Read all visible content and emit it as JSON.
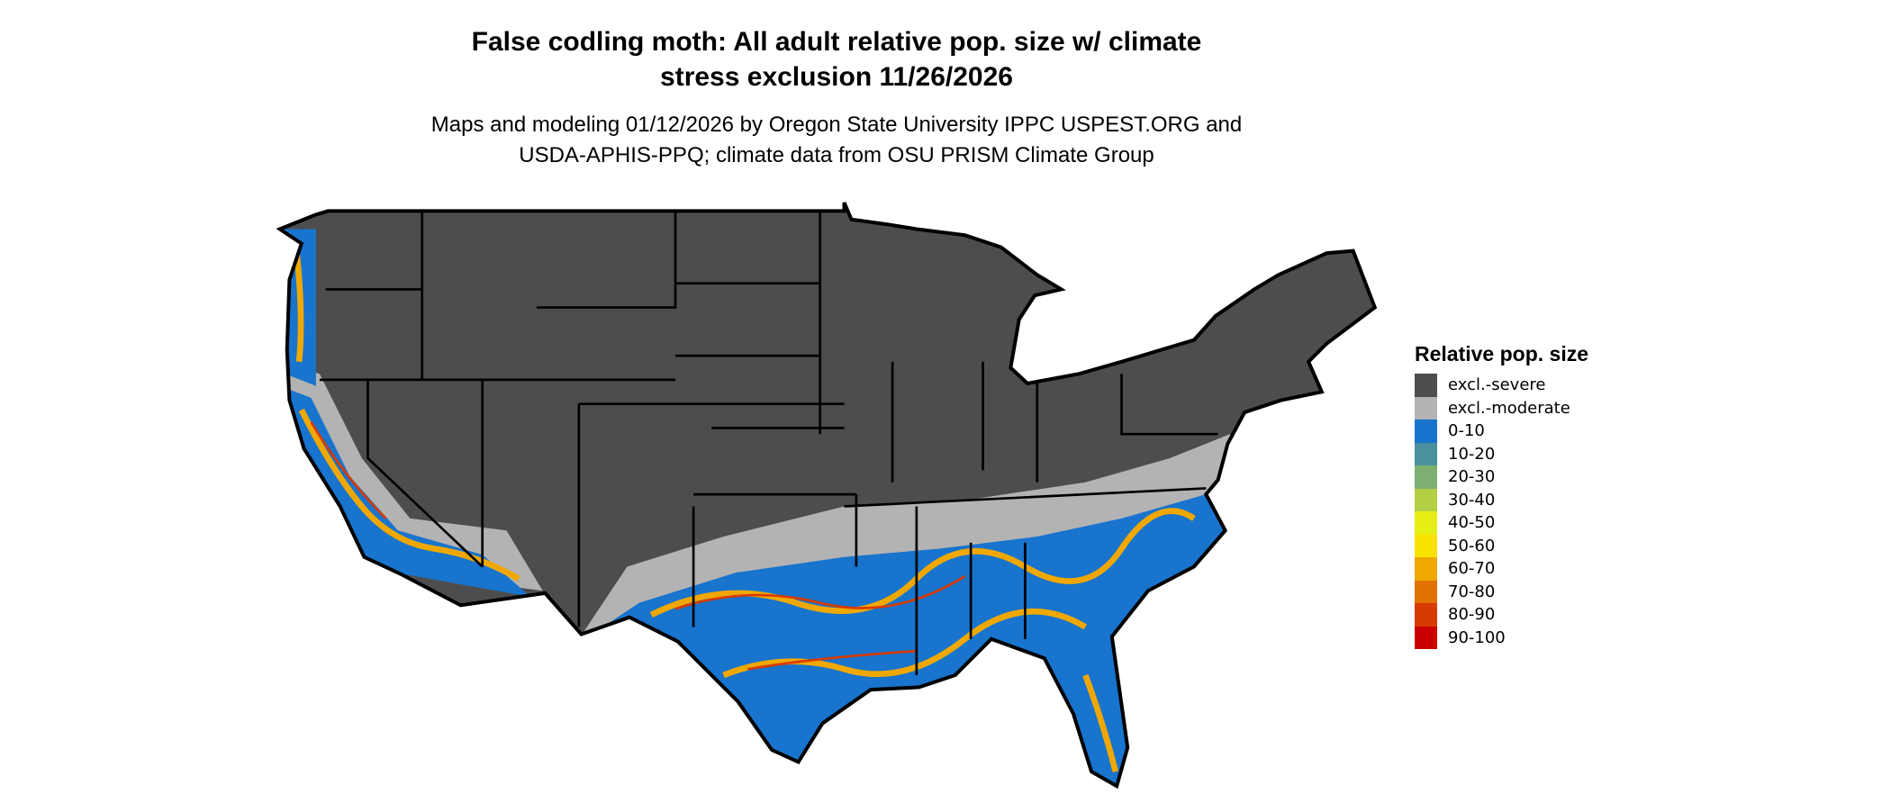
{
  "title": {
    "line1": "False codling moth: All adult relative pop. size w/ climate",
    "line2": "stress exclusion 11/26/2026"
  },
  "subtitle": {
    "line1": "Maps and modeling 01/12/2026 by Oregon State University IPPC USPEST.ORG and",
    "line2": "USDA-APHIS-PPQ; climate data from OSU PRISM Climate Group"
  },
  "legend": {
    "title": "Relative pop. size",
    "items": [
      {
        "label": "excl.-severe",
        "color": "#4d4d4d"
      },
      {
        "label": "excl.-moderate",
        "color": "#b3b3b3"
      },
      {
        "label": "0-10",
        "color": "#1874cd"
      },
      {
        "label": "10-20",
        "color": "#4a919e"
      },
      {
        "label": "20-30",
        "color": "#7db070"
      },
      {
        "label": "30-40",
        "color": "#b3d045"
      },
      {
        "label": "40-50",
        "color": "#e5ef14"
      },
      {
        "label": "50-60",
        "color": "#f9e200"
      },
      {
        "label": "60-70",
        "color": "#f0a800"
      },
      {
        "label": "70-80",
        "color": "#e37100"
      },
      {
        "label": "80-90",
        "color": "#d93a00"
      },
      {
        "label": "90-100",
        "color": "#cc0000"
      }
    ]
  },
  "map": {
    "region": "Contiguous United States",
    "colors": {
      "border": "#000000",
      "severe": "#4d4d4d",
      "moderate": "#b3b3b3",
      "low": "#1874cd",
      "high": "#f0a800",
      "peak": "#d93a00"
    }
  }
}
